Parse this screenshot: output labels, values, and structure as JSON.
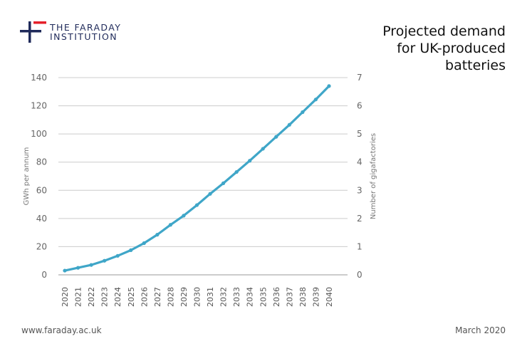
{
  "brand": {
    "line1": "THE FARADAY",
    "line2": "INSTITUTION",
    "colors": {
      "navy": "#1f2a5a",
      "red": "#e5202a"
    }
  },
  "title_lines": [
    "Projected demand",
    "for UK-produced",
    "batteries"
  ],
  "footer": {
    "website": "www.faraday.ac.uk",
    "date": "March 2020"
  },
  "chart_data": {
    "type": "line",
    "x": [
      "2020",
      "2021",
      "2022",
      "2023",
      "2024",
      "2025",
      "2026",
      "2027",
      "2028",
      "2029",
      "2030",
      "2031",
      "2032",
      "2033",
      "2034",
      "2035",
      "2036",
      "2037",
      "2038",
      "2039",
      "2040"
    ],
    "series": [
      {
        "values": [
          3,
          5,
          7,
          10,
          13.5,
          17.5,
          22.5,
          28.5,
          35.5,
          42,
          49.5,
          57.5,
          65,
          73,
          81,
          89.5,
          98,
          106.5,
          115.5,
          124.5,
          134
        ]
      }
    ],
    "ylabel_left": "GWh per annum",
    "ylabel_right": "Number of gigafactories",
    "ylim_left": [
      0,
      140
    ],
    "yticks_left": [
      0,
      20,
      40,
      60,
      80,
      100,
      120,
      140
    ],
    "ylim_right": [
      0,
      7
    ],
    "yticks_right": [
      0,
      1,
      2,
      3,
      4,
      5,
      6,
      7
    ],
    "grid": true,
    "line_color": "#3fa6c8",
    "grid_color": "#cccccc"
  }
}
